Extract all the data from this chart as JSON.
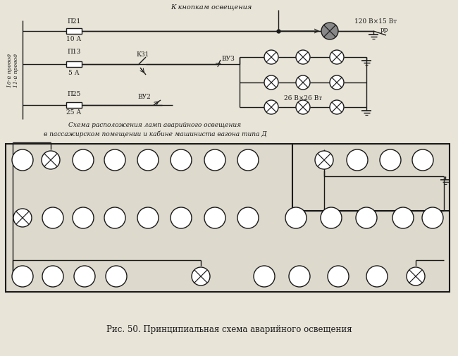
{
  "bg_color": "#e8e4d8",
  "line_color": "#1a1a1a",
  "title_text": "Рис. 50. Принципиальная схема аварийного освещения",
  "subtitle1": "Схема расположения ламп аварийного освещения",
  "subtitle2": "в пассажирском помещении и кабине машиниста вагона типа Д",
  "top_label": "К кнопкам освещения",
  "lamp_label_top": "120 В×15 Вт",
  "lamp_label_mid": "26 В×26 Вт",
  "label_10": "10-й провод",
  "label_11": "11-й провод",
  "label_p21": "П21",
  "label_10a": "10 А",
  "label_p13": "П13",
  "label_5a": "5 А",
  "label_k31": "К31",
  "label_vu3": "ВУЗ",
  "label_p25": "П25",
  "label_25a": "25 А",
  "label_vu2": "ВУ2",
  "label_rp": "рр"
}
